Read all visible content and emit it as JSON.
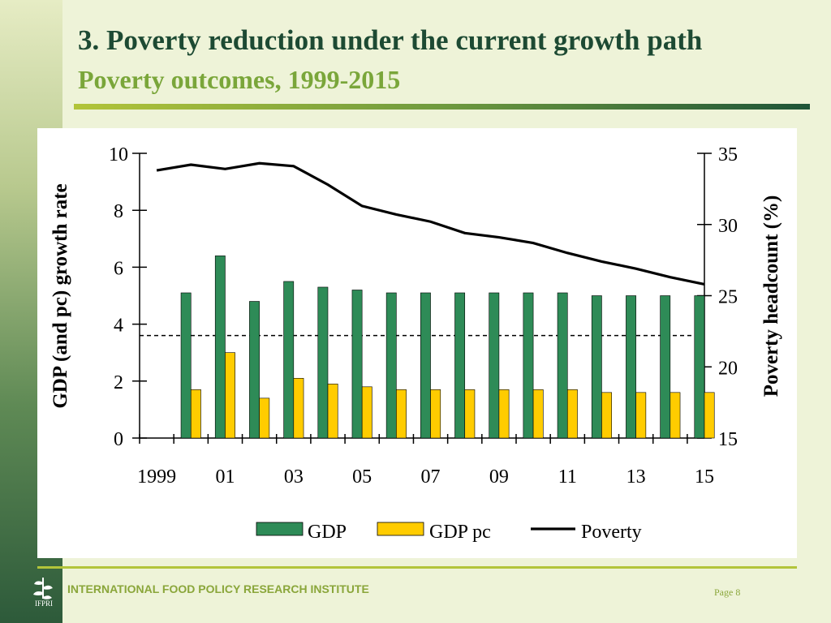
{
  "slide": {
    "title": "3. Poverty reduction under the current growth path",
    "subtitle": "Poverty outcomes, 1999-2015",
    "footer": "INTERNATIONAL FOOD POLICY RESEARCH INSTITUTE",
    "logo_text": "IFPRI",
    "page": "Page 8",
    "colors": {
      "title": "#1d4a33",
      "subtitle": "#7aa63a",
      "footer": "#8aa63a",
      "background": "#eef3d8"
    }
  },
  "chart_data": {
    "type": "bar",
    "title": "",
    "x": [
      1999,
      2000,
      2001,
      2002,
      2003,
      2004,
      2005,
      2006,
      2007,
      2008,
      2009,
      2010,
      2011,
      2012,
      2013,
      2014,
      2015
    ],
    "xtick_labels": [
      "1999",
      "01",
      "03",
      "05",
      "07",
      "09",
      "11",
      "13",
      "15"
    ],
    "xtick_years": [
      1999,
      2001,
      2003,
      2005,
      2007,
      2009,
      2011,
      2013,
      2015
    ],
    "ylabel": "GDP (and pc) growth rate",
    "ylim": [
      0,
      10
    ],
    "yticks": [
      0,
      2,
      4,
      6,
      8,
      10
    ],
    "y2label": "Poverty headcount (%)",
    "y2lim": [
      15,
      35
    ],
    "y2ticks": [
      15,
      20,
      25,
      30,
      35
    ],
    "series": [
      {
        "name": "GDP",
        "kind": "bar",
        "axis": "left",
        "color": "#2e8b57",
        "x": [
          2000,
          2001,
          2002,
          2003,
          2004,
          2005,
          2006,
          2007,
          2008,
          2009,
          2010,
          2011,
          2012,
          2013,
          2014,
          2015
        ],
        "values": [
          5.1,
          6.4,
          4.8,
          5.5,
          5.3,
          5.2,
          5.1,
          5.1,
          5.1,
          5.1,
          5.1,
          5.1,
          5.0,
          5.0,
          5.0,
          5.0
        ]
      },
      {
        "name": "GDP pc",
        "kind": "bar",
        "axis": "left",
        "color": "#ffcc00",
        "x": [
          2000,
          2001,
          2002,
          2003,
          2004,
          2005,
          2006,
          2007,
          2008,
          2009,
          2010,
          2011,
          2012,
          2013,
          2014,
          2015
        ],
        "values": [
          1.7,
          3.0,
          1.4,
          2.1,
          1.9,
          1.8,
          1.7,
          1.7,
          1.7,
          1.7,
          1.7,
          1.7,
          1.6,
          1.6,
          1.6,
          1.6
        ]
      },
      {
        "name": "Poverty",
        "kind": "line",
        "axis": "right",
        "color": "#000000",
        "x": [
          1999,
          2000,
          2001,
          2002,
          2003,
          2004,
          2005,
          2006,
          2007,
          2008,
          2009,
          2010,
          2011,
          2012,
          2013,
          2014,
          2015
        ],
        "values": [
          33.8,
          34.2,
          33.9,
          34.3,
          34.1,
          32.8,
          31.3,
          30.7,
          30.2,
          29.4,
          29.1,
          28.7,
          28.0,
          27.4,
          26.9,
          26.3,
          25.8
        ]
      }
    ],
    "reference_line": {
      "axis": "left",
      "value": 3.6,
      "style": "dashed"
    },
    "legend": {
      "position": "bottom",
      "items": [
        "GDP",
        "GDP pc",
        "Poverty"
      ]
    },
    "grid": false
  }
}
